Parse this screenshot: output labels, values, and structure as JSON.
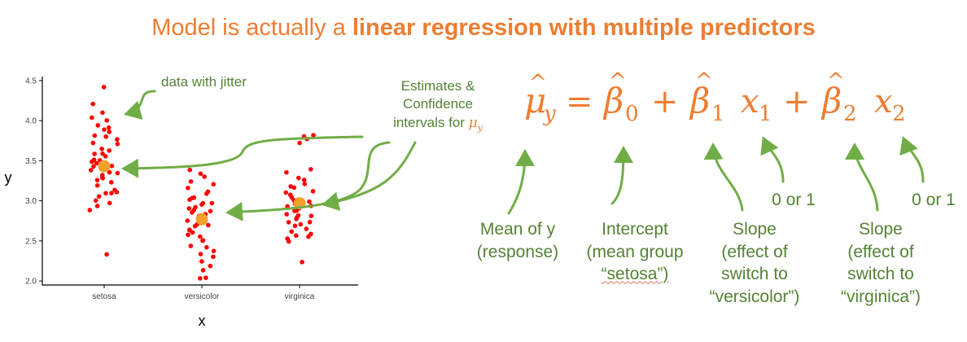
{
  "title": {
    "plain": "Model is actually a ",
    "bold": "linear regression with multiple predictors"
  },
  "chart_data": {
    "type": "scatter",
    "title": "",
    "xlabel": "x",
    "ylabel": "y",
    "categories": [
      "setosa",
      "versicolor",
      "virginica"
    ],
    "ylim": [
      1.95,
      4.55
    ],
    "yticks": [
      "2.0",
      "2.5",
      "3.0",
      "3.5",
      "4.0",
      "4.5"
    ],
    "grid": false,
    "point_color": "#ff0000",
    "estimate_color": "#f5a02a",
    "estimates": [
      3.43,
      2.77,
      2.97
    ],
    "points": {
      "setosa": [
        4.42,
        4.2,
        4.1,
        4.05,
        4.0,
        3.95,
        3.9,
        3.88,
        3.85,
        3.8,
        3.8,
        3.78,
        3.72,
        3.7,
        3.65,
        3.62,
        3.6,
        3.58,
        3.55,
        3.52,
        3.5,
        3.5,
        3.48,
        3.46,
        3.45,
        3.44,
        3.42,
        3.4,
        3.38,
        3.36,
        3.34,
        3.32,
        3.3,
        3.28,
        3.25,
        3.22,
        3.2,
        3.15,
        3.12,
        3.1,
        3.08,
        3.05,
        3.0,
        2.98,
        2.95,
        2.88,
        2.33
      ],
      "versicolor": [
        3.4,
        3.35,
        3.3,
        3.25,
        3.2,
        3.15,
        3.12,
        3.1,
        3.05,
        3.02,
        3.0,
        2.98,
        2.96,
        2.94,
        2.92,
        2.9,
        2.88,
        2.86,
        2.84,
        2.82,
        2.8,
        2.78,
        2.76,
        2.74,
        2.72,
        2.7,
        2.68,
        2.65,
        2.62,
        2.6,
        2.58,
        2.55,
        2.52,
        2.5,
        2.45,
        2.42,
        2.38,
        2.35,
        2.3,
        2.25,
        2.2,
        2.15,
        2.05,
        2.02
      ],
      "virginica": [
        3.82,
        3.8,
        3.78,
        3.72,
        3.4,
        3.35,
        3.3,
        3.25,
        3.2,
        3.18,
        3.15,
        3.12,
        3.1,
        3.08,
        3.05,
        3.02,
        3.0,
        2.98,
        2.96,
        2.94,
        2.92,
        2.9,
        2.88,
        2.86,
        2.84,
        2.82,
        2.8,
        2.78,
        2.76,
        2.74,
        2.72,
        2.7,
        2.68,
        2.65,
        2.62,
        2.6,
        2.58,
        2.55,
        2.52,
        2.5,
        2.25
      ]
    }
  },
  "annotations": {
    "jitter": "data with jitter",
    "estimates_line1": "Estimates &",
    "estimates_line2": "Confidence",
    "estimates_line3": "intervals for ",
    "mu_sub": "y"
  },
  "equation": {
    "mu": "μ",
    "sub_y": "y",
    "equals": "=",
    "beta": "β",
    "plus": "+",
    "x": "x",
    "idx0": "0",
    "idx1": "1",
    "idx2": "2"
  },
  "labels": {
    "mean_y": [
      "Mean of y",
      "(response)"
    ],
    "intercept": [
      "Intercept",
      "(mean group",
      "“setosa”)"
    ],
    "slope1": [
      "Slope",
      "(effect of",
      "switch to",
      "“versicolor”)"
    ],
    "slope2": [
      "Slope",
      "(effect of",
      "switch to",
      "“virginica”)"
    ],
    "zero_or_one_a": "0 or 1",
    "zero_or_one_b": "0 or 1"
  },
  "colors": {
    "title": "#ED7D31",
    "annotation": "#548235",
    "arrow": "#70AD47",
    "equation": "#ED7D31"
  }
}
